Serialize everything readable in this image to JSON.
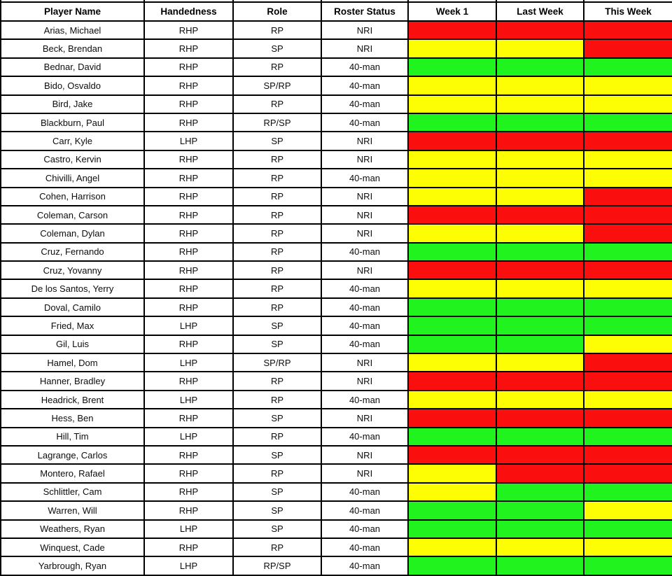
{
  "table": {
    "columns": [
      "Player Name",
      "Handedness",
      "Role",
      "Roster Status",
      "Week 1",
      "Last Week",
      "This Week"
    ],
    "column_keys": [
      "player",
      "handedness",
      "role",
      "roster",
      "week1",
      "last_week",
      "this_week"
    ],
    "status_colors": {
      "red": "#fa0e0e",
      "yellow": "#fdfd04",
      "green": "#20f31d"
    },
    "rows": [
      {
        "player": "Arias, Michael",
        "handedness": "RHP",
        "role": "RP",
        "roster": "NRI",
        "week1": "red",
        "last_week": "red",
        "this_week": "red"
      },
      {
        "player": "Beck, Brendan",
        "handedness": "RHP",
        "role": "SP",
        "roster": "NRI",
        "week1": "yellow",
        "last_week": "yellow",
        "this_week": "red"
      },
      {
        "player": "Bednar, David",
        "handedness": "RHP",
        "role": "RP",
        "roster": "40-man",
        "week1": "green",
        "last_week": "green",
        "this_week": "green"
      },
      {
        "player": "Bido, Osvaldo",
        "handedness": "RHP",
        "role": "SP/RP",
        "roster": "40-man",
        "week1": "yellow",
        "last_week": "yellow",
        "this_week": "yellow"
      },
      {
        "player": "Bird, Jake",
        "handedness": "RHP",
        "role": "RP",
        "roster": "40-man",
        "week1": "yellow",
        "last_week": "yellow",
        "this_week": "yellow"
      },
      {
        "player": "Blackburn, Paul",
        "handedness": "RHP",
        "role": "RP/SP",
        "roster": "40-man",
        "week1": "green",
        "last_week": "green",
        "this_week": "green"
      },
      {
        "player": "Carr, Kyle",
        "handedness": "LHP",
        "role": "SP",
        "roster": "NRI",
        "week1": "red",
        "last_week": "red",
        "this_week": "red"
      },
      {
        "player": "Castro, Kervin",
        "handedness": "RHP",
        "role": "RP",
        "roster": "NRI",
        "week1": "yellow",
        "last_week": "yellow",
        "this_week": "yellow"
      },
      {
        "player": "Chivilli, Angel",
        "handedness": "RHP",
        "role": "RP",
        "roster": "40-man",
        "week1": "yellow",
        "last_week": "yellow",
        "this_week": "yellow"
      },
      {
        "player": "Cohen, Harrison",
        "handedness": "RHP",
        "role": "RP",
        "roster": "NRI",
        "week1": "yellow",
        "last_week": "yellow",
        "this_week": "red"
      },
      {
        "player": "Coleman, Carson",
        "handedness": "RHP",
        "role": "RP",
        "roster": "NRI",
        "week1": "red",
        "last_week": "red",
        "this_week": "red"
      },
      {
        "player": "Coleman, Dylan",
        "handedness": "RHP",
        "role": "RP",
        "roster": "NRI",
        "week1": "yellow",
        "last_week": "yellow",
        "this_week": "red"
      },
      {
        "player": "Cruz, Fernando",
        "handedness": "RHP",
        "role": "RP",
        "roster": "40-man",
        "week1": "green",
        "last_week": "green",
        "this_week": "green"
      },
      {
        "player": "Cruz, Yovanny",
        "handedness": "RHP",
        "role": "RP",
        "roster": "NRI",
        "week1": "red",
        "last_week": "red",
        "this_week": "red"
      },
      {
        "player": "De los Santos, Yerry",
        "handedness": "RHP",
        "role": "RP",
        "roster": "40-man",
        "week1": "yellow",
        "last_week": "yellow",
        "this_week": "yellow"
      },
      {
        "player": "Doval, Camilo",
        "handedness": "RHP",
        "role": "RP",
        "roster": "40-man",
        "week1": "green",
        "last_week": "green",
        "this_week": "green"
      },
      {
        "player": "Fried, Max",
        "handedness": "LHP",
        "role": "SP",
        "roster": "40-man",
        "week1": "green",
        "last_week": "green",
        "this_week": "green"
      },
      {
        "player": "Gil, Luis",
        "handedness": "RHP",
        "role": "SP",
        "roster": "40-man",
        "week1": "green",
        "last_week": "green",
        "this_week": "yellow"
      },
      {
        "player": "Hamel, Dom",
        "handedness": "LHP",
        "role": "SP/RP",
        "roster": "NRI",
        "week1": "yellow",
        "last_week": "yellow",
        "this_week": "red"
      },
      {
        "player": "Hanner, Bradley",
        "handedness": "RHP",
        "role": "RP",
        "roster": "NRI",
        "week1": "red",
        "last_week": "red",
        "this_week": "red"
      },
      {
        "player": "Headrick, Brent",
        "handedness": "LHP",
        "role": "RP",
        "roster": "40-man",
        "week1": "yellow",
        "last_week": "yellow",
        "this_week": "yellow"
      },
      {
        "player": "Hess, Ben",
        "handedness": "RHP",
        "role": "SP",
        "roster": "NRI",
        "week1": "red",
        "last_week": "red",
        "this_week": "red"
      },
      {
        "player": "Hill, Tim",
        "handedness": "LHP",
        "role": "RP",
        "roster": "40-man",
        "week1": "green",
        "last_week": "green",
        "this_week": "green"
      },
      {
        "player": "Lagrange, Carlos",
        "handedness": "RHP",
        "role": "SP",
        "roster": "NRI",
        "week1": "red",
        "last_week": "red",
        "this_week": "red"
      },
      {
        "player": "Montero, Rafael",
        "handedness": "RHP",
        "role": "RP",
        "roster": "NRI",
        "week1": "yellow",
        "last_week": "red",
        "this_week": "red"
      },
      {
        "player": "Schlittler, Cam",
        "handedness": "RHP",
        "role": "SP",
        "roster": "40-man",
        "week1": "yellow",
        "last_week": "green",
        "this_week": "green"
      },
      {
        "player": "Warren, Will",
        "handedness": "RHP",
        "role": "SP",
        "roster": "40-man",
        "week1": "green",
        "last_week": "green",
        "this_week": "yellow"
      },
      {
        "player": "Weathers, Ryan",
        "handedness": "LHP",
        "role": "SP",
        "roster": "40-man",
        "week1": "green",
        "last_week": "green",
        "this_week": "green"
      },
      {
        "player": "Winquest, Cade",
        "handedness": "RHP",
        "role": "RP",
        "roster": "40-man",
        "week1": "yellow",
        "last_week": "yellow",
        "this_week": "yellow"
      },
      {
        "player": "Yarbrough, Ryan",
        "handedness": "LHP",
        "role": "RP/SP",
        "roster": "40-man",
        "week1": "green",
        "last_week": "green",
        "this_week": "green"
      }
    ]
  }
}
